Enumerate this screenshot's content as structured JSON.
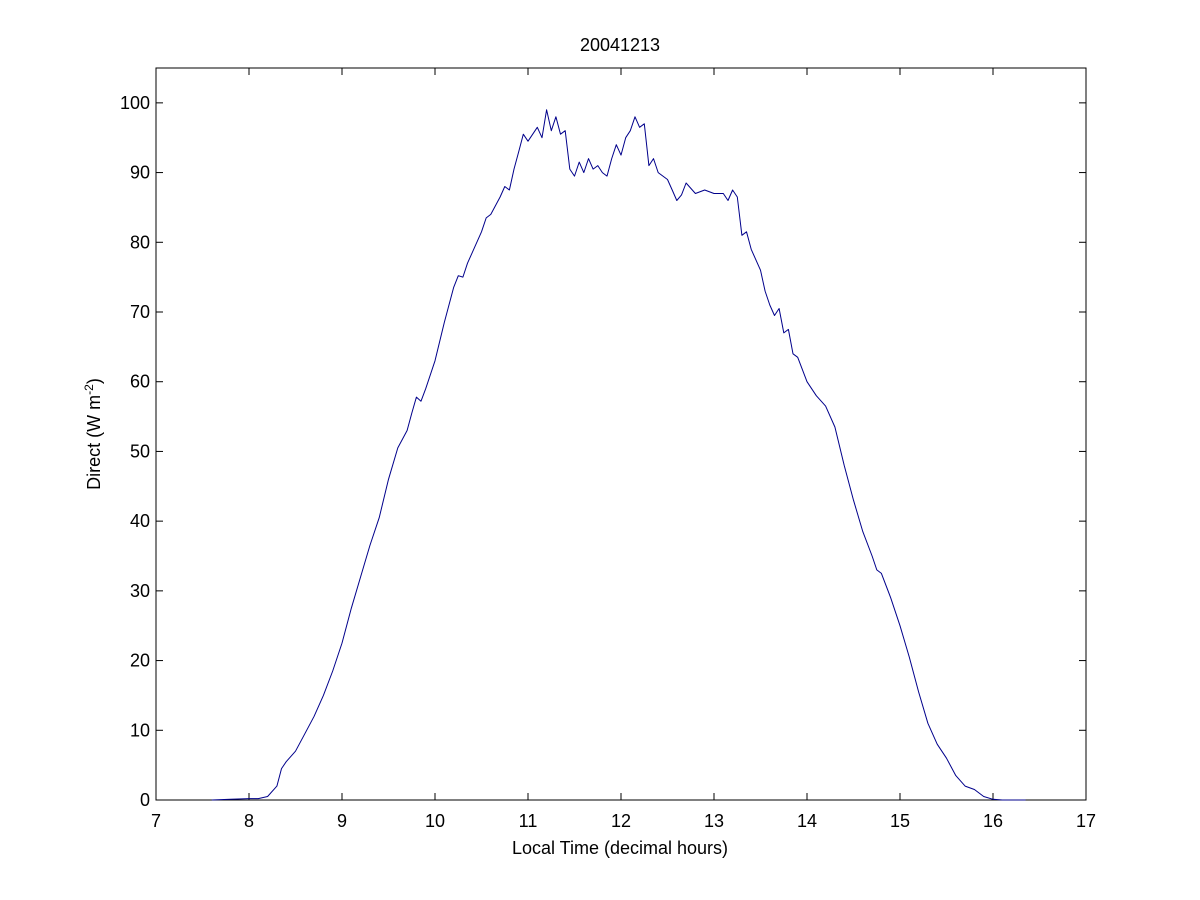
{
  "chart_data": {
    "type": "line",
    "title": "20041213",
    "xlabel": "Local Time (decimal hours)",
    "ylabel": "Direct (W m",
    "ylabel_exponent": "-2",
    "ylabel_close": ")",
    "xlim": [
      7,
      17
    ],
    "ylim": [
      0,
      105
    ],
    "xticks": [
      7,
      8,
      9,
      10,
      11,
      12,
      13,
      14,
      15,
      16,
      17
    ],
    "yticks": [
      0,
      10,
      20,
      30,
      40,
      50,
      60,
      70,
      80,
      90,
      100
    ],
    "grid": false,
    "line_color": "#00008b",
    "series": [
      {
        "x": [
          7.6,
          7.8,
          8.0,
          8.1,
          8.2,
          8.3,
          8.35,
          8.4,
          8.5,
          8.6,
          8.7,
          8.8,
          8.9,
          9.0,
          9.1,
          9.2,
          9.3,
          9.4,
          9.5,
          9.6,
          9.7,
          9.75,
          9.8,
          9.85,
          9.9,
          10.0,
          10.1,
          10.2,
          10.25,
          10.3,
          10.35,
          10.4,
          10.5,
          10.55,
          10.6,
          10.7,
          10.75,
          10.8,
          10.85,
          10.9,
          10.95,
          11.0,
          11.05,
          11.1,
          11.15,
          11.2,
          11.25,
          11.3,
          11.35,
          11.4,
          11.45,
          11.5,
          11.55,
          11.6,
          11.65,
          11.7,
          11.75,
          11.8,
          11.85,
          11.9,
          11.95,
          12.0,
          12.05,
          12.1,
          12.15,
          12.2,
          12.25,
          12.3,
          12.35,
          12.4,
          12.5,
          12.55,
          12.6,
          12.65,
          12.7,
          12.8,
          12.9,
          13.0,
          13.1,
          13.15,
          13.2,
          13.25,
          13.3,
          13.35,
          13.4,
          13.5,
          13.55,
          13.6,
          13.65,
          13.7,
          13.75,
          13.8,
          13.85,
          13.9,
          14.0,
          14.1,
          14.2,
          14.3,
          14.4,
          14.5,
          14.6,
          14.7,
          14.75,
          14.8,
          14.9,
          15.0,
          15.1,
          15.2,
          15.3,
          15.4,
          15.5,
          15.6,
          15.7,
          15.8,
          15.9,
          16.0,
          16.1,
          16.2,
          16.35
        ],
        "y": [
          0.0,
          0.1,
          0.2,
          0.2,
          0.5,
          2.0,
          4.5,
          5.5,
          7.0,
          9.5,
          12.0,
          15.0,
          18.5,
          22.5,
          27.5,
          32.0,
          36.5,
          40.5,
          46.0,
          50.5,
          53.0,
          55.5,
          57.8,
          57.2,
          59.0,
          63.0,
          68.5,
          73.5,
          75.2,
          75.0,
          77.0,
          78.5,
          81.5,
          83.5,
          84.0,
          86.5,
          88.0,
          87.5,
          90.5,
          93.0,
          95.5,
          94.5,
          95.5,
          96.5,
          95.0,
          99.0,
          96.0,
          98.0,
          95.5,
          96.0,
          90.5,
          89.5,
          91.5,
          90.0,
          92.0,
          90.5,
          91.0,
          90.0,
          89.5,
          92.0,
          94.0,
          92.5,
          95.0,
          96.0,
          98.0,
          96.5,
          97.0,
          91.0,
          92.0,
          90.0,
          89.0,
          87.5,
          86.0,
          86.8,
          88.5,
          87.0,
          87.5,
          87.0,
          87.0,
          86.0,
          87.5,
          86.5,
          81.0,
          81.5,
          79.0,
          76.0,
          73.0,
          71.0,
          69.5,
          70.5,
          67.0,
          67.5,
          64.0,
          63.5,
          60.0,
          58.0,
          56.5,
          53.5,
          48.0,
          43.0,
          38.5,
          35.0,
          33.0,
          32.5,
          29.0,
          25.0,
          20.5,
          15.5,
          11.0,
          8.0,
          6.0,
          3.5,
          2.0,
          1.5,
          0.5,
          0.1,
          0.0,
          0.0,
          0.0
        ]
      }
    ]
  }
}
